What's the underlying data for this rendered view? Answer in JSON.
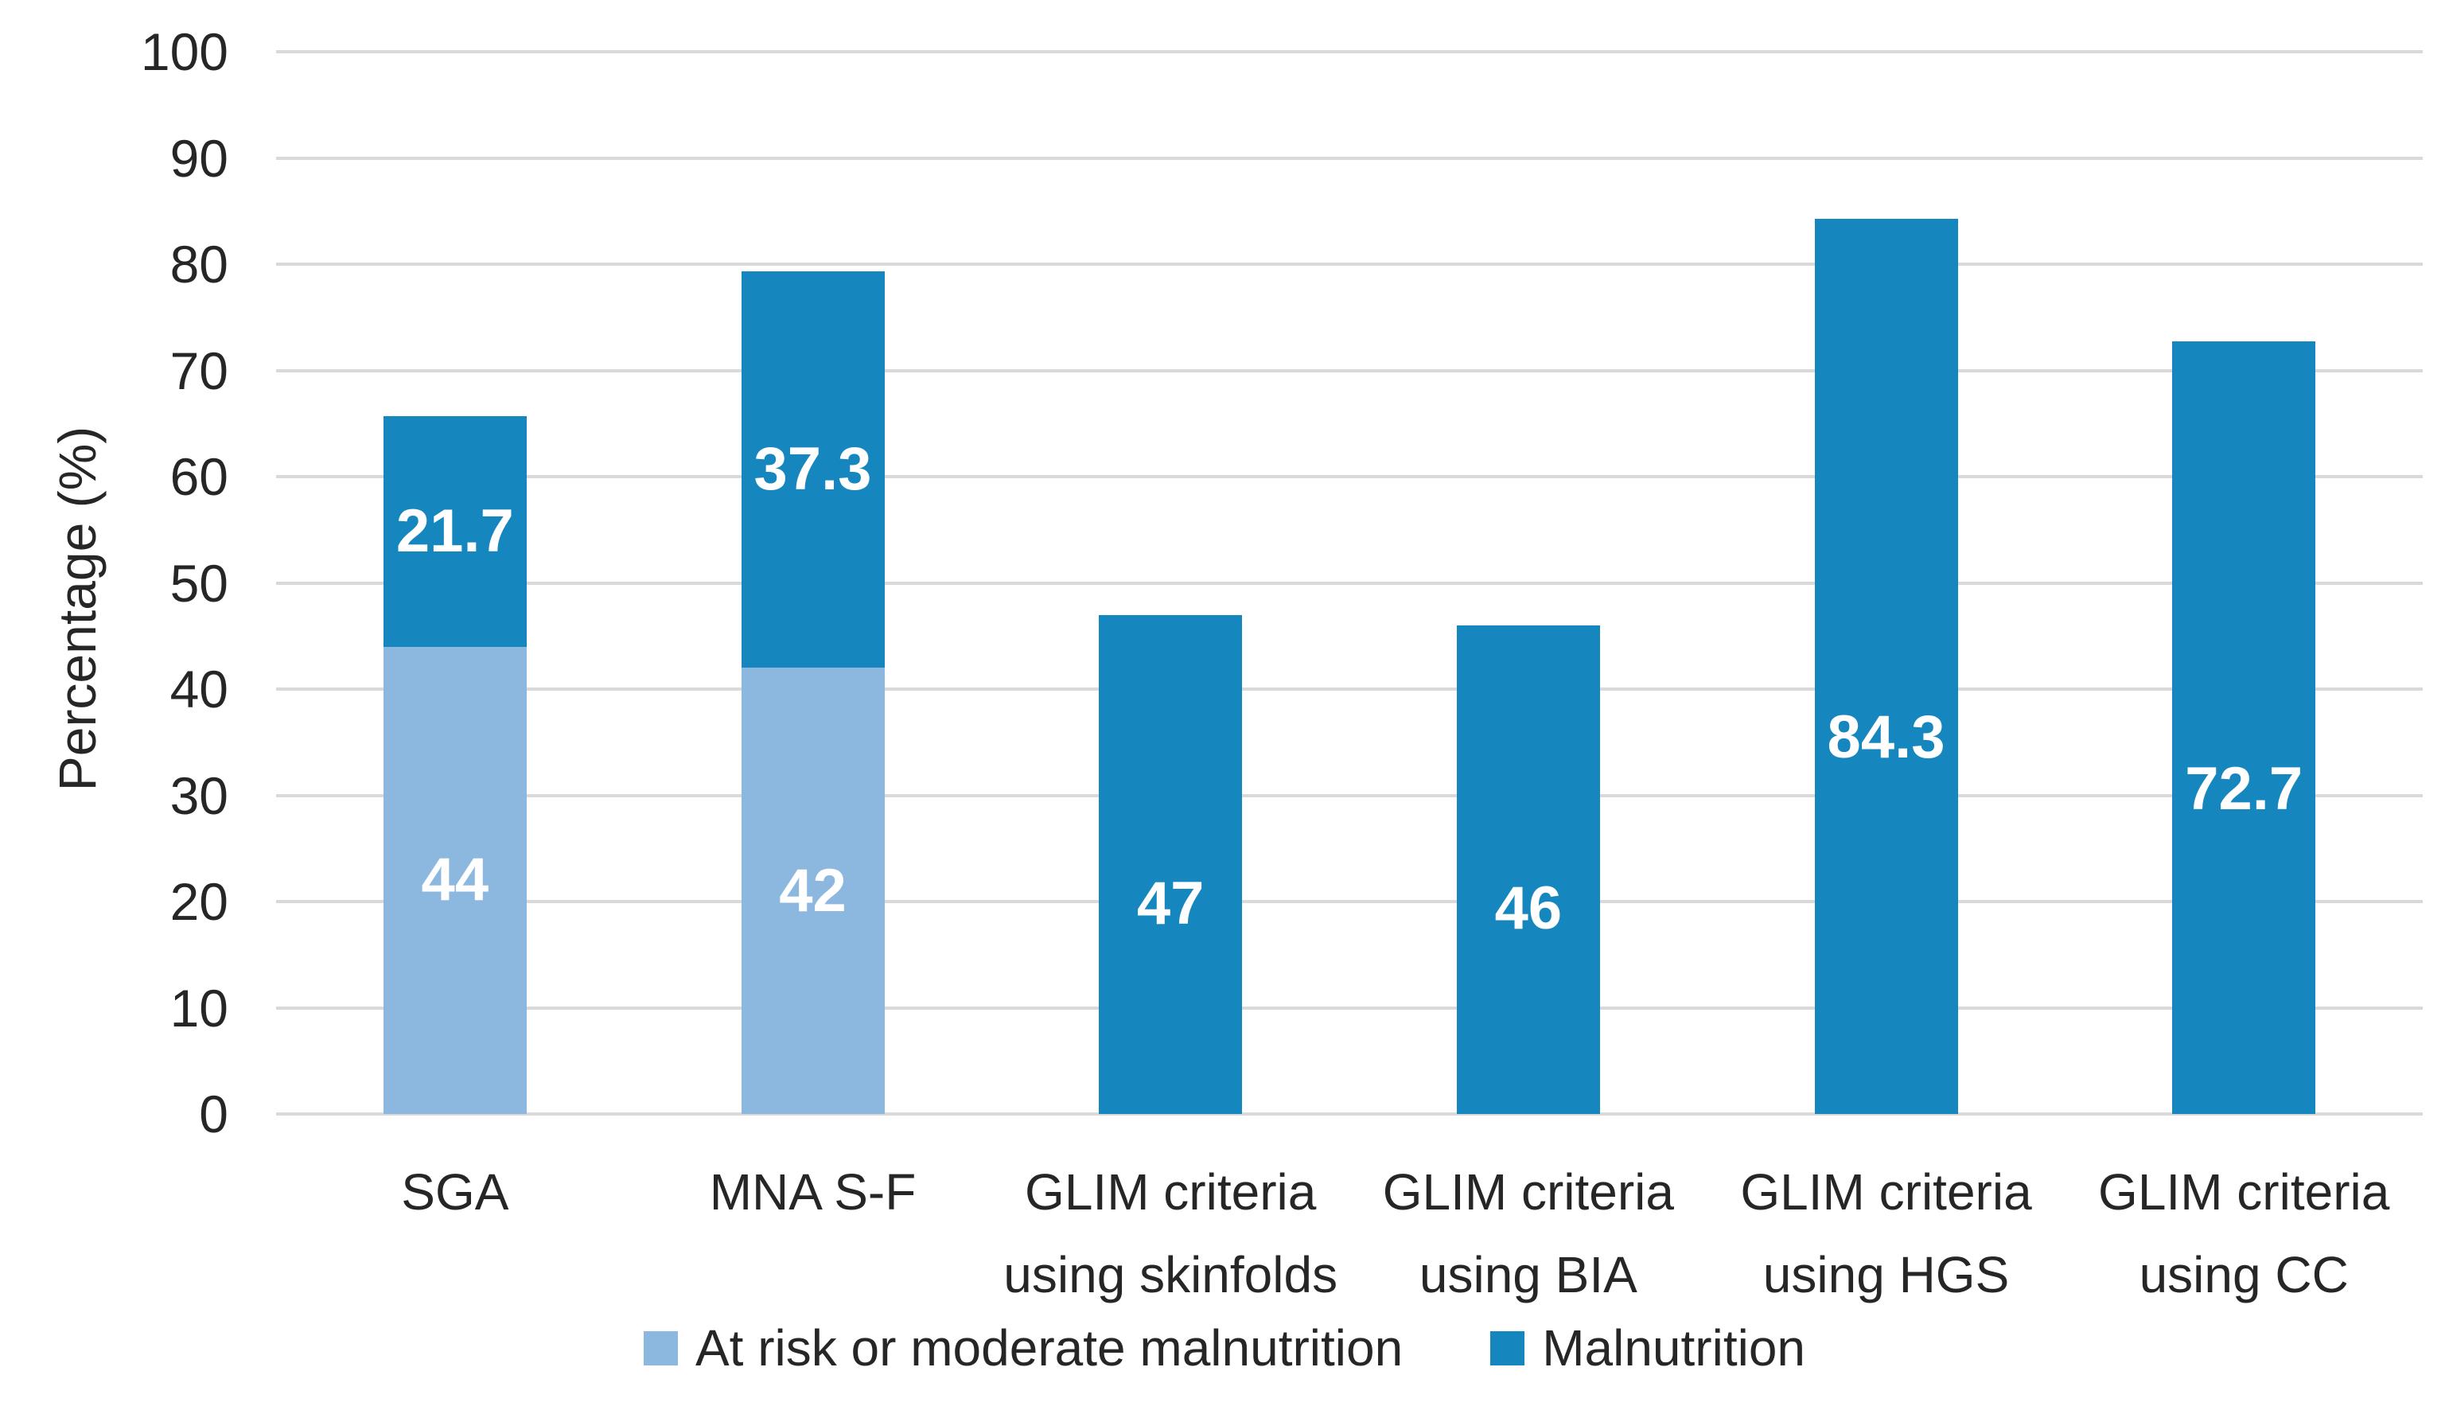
{
  "chart_data": {
    "type": "bar",
    "stacked": true,
    "title": "",
    "xlabel": "",
    "ylabel": "Percentage (%)",
    "ylim": [
      0,
      100
    ],
    "yticks": [
      0,
      10,
      20,
      30,
      40,
      50,
      60,
      70,
      80,
      90,
      100
    ],
    "grid": true,
    "legend_position": "bottom",
    "categories": [
      "SGA",
      "MNA S-F",
      "GLIM criteria\nusing skinfolds",
      "GLIM criteria\nusing BIA",
      "GLIM criteria\nusing HGS",
      "GLIM criteria\nusing CC"
    ],
    "series": [
      {
        "name": "At risk or moderate malnutrition",
        "key": "at-risk",
        "color": "#8CB8E0",
        "values": [
          44,
          42,
          null,
          null,
          null,
          null
        ]
      },
      {
        "name": "Malnutrition",
        "key": "malnutrition",
        "color": "#1586BE",
        "values": [
          21.7,
          37.3,
          47,
          46,
          84.3,
          72.7
        ]
      }
    ],
    "bar_totals": [
      65.7,
      79.3,
      47,
      46,
      84.3,
      72.7
    ],
    "colors": {
      "gridline": "#D9D9D9",
      "text": "#262626",
      "data_label": "#FFFFFF",
      "background": "#FFFFFF"
    }
  }
}
